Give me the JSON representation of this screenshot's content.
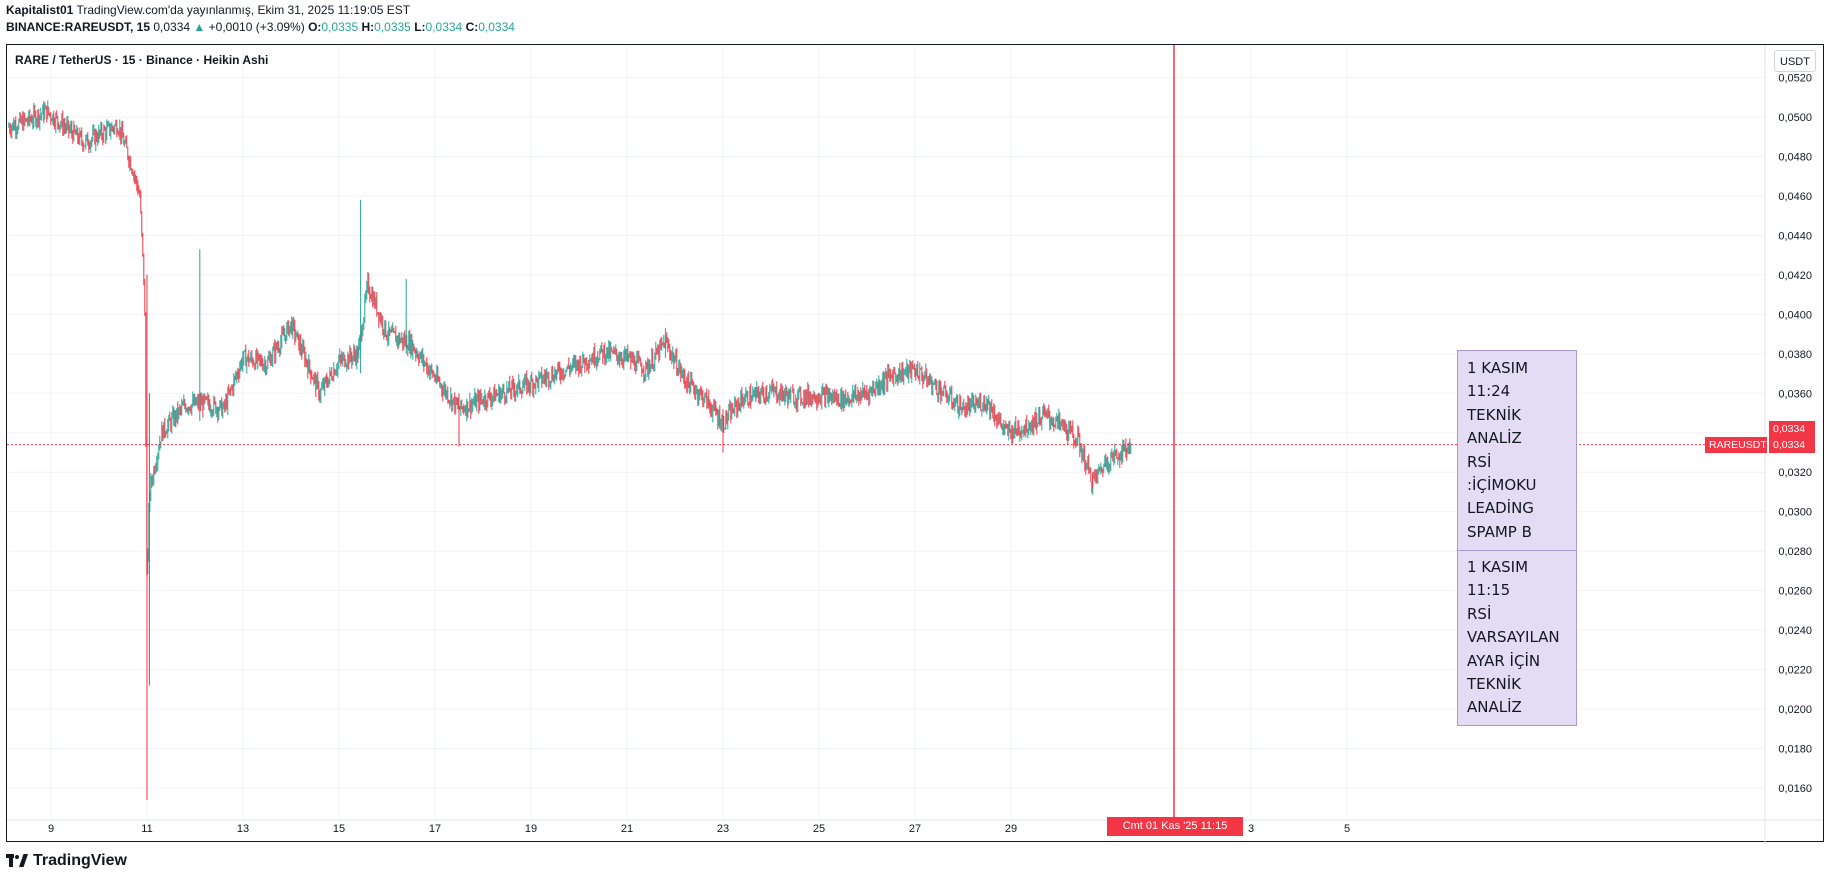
{
  "header": {
    "author": "Kapitalist01",
    "published": "TradingView.com'da yayınlanmış, Ekim 31, 2025 11:19:05 EST",
    "symbol": "BINANCE:RAREUSDT, 15",
    "last": "0,0334",
    "change": "+0,0010 (+3.09%)",
    "o_label": "O:",
    "o_value": "0,0335",
    "h_label": "H:",
    "h_value": "0,0335",
    "l_label": "L:",
    "l_value": "0,0334",
    "c_label": "C:",
    "c_value": "0,0334"
  },
  "chart_title": "RARE / TetherUS · 15 · Binance · Heikin Ashi",
  "currency": "USDT",
  "price_tags": {
    "symbol_label": "RAREUSDT",
    "last_price": "0,0334",
    "close_price": "0,0334"
  },
  "time_tag": "Cmt 01 Kas '25    11:15",
  "note": {
    "part1": "1 KASIM\n11:24\nTEKNİK\nANALİZ\nRSİ\n:İÇİMOKU\nLEADİNG\nSPAMP B",
    "part2": "1 KASIM\n11:15\nRSİ\nVARSAYILAN\nAYAR İÇİN\nTEKNİK\nANALİZ"
  },
  "footer": {
    "brand": "TradingView"
  },
  "colors": {
    "up": "#26a69a",
    "down": "#f23645",
    "marker": "#f23645",
    "note_bg": "#e4dcf4"
  },
  "chart_data": {
    "type": "candlestick",
    "style": "Heikin Ashi",
    "title": "RARE / TetherUS · 15 · Binance · Heikin Ashi",
    "y_ticks": [
      "0,0520",
      "0,0500",
      "0,0480",
      "0,0460",
      "0,0440",
      "0,0420",
      "0,0400",
      "0,0380",
      "0,0360",
      "0,0340",
      "0,0320",
      "0,0300",
      "0,0280",
      "0,0260",
      "0,0240",
      "0,0220",
      "0,0200",
      "0,0180",
      "0,0160"
    ],
    "x_ticks": [
      "9",
      "11",
      "13",
      "15",
      "17",
      "19",
      "21",
      "23",
      "25",
      "27",
      "29",
      "3",
      "5"
    ],
    "ylim": [
      0.0153,
      0.0522
    ],
    "last_price": 0.0334,
    "grid": true,
    "series": [
      {
        "name": "RAREUSDT",
        "points": [
          {
            "day": 8.1,
            "price": 0.0495
          },
          {
            "day": 8.5,
            "price": 0.0498
          },
          {
            "day": 8.9,
            "price": 0.0503
          },
          {
            "day": 9.3,
            "price": 0.0495
          },
          {
            "day": 9.7,
            "price": 0.0487
          },
          {
            "day": 10.0,
            "price": 0.0491
          },
          {
            "day": 10.4,
            "price": 0.0496
          },
          {
            "day": 10.7,
            "price": 0.0474
          },
          {
            "day": 10.85,
            "price": 0.046
          },
          {
            "day": 10.95,
            "price": 0.041
          },
          {
            "day": 11.0,
            "price": 0.026
          },
          {
            "day": 11.05,
            "price": 0.031
          },
          {
            "day": 11.3,
            "price": 0.034
          },
          {
            "day": 11.8,
            "price": 0.0354
          },
          {
            "day": 12.2,
            "price": 0.0355
          },
          {
            "day": 12.6,
            "price": 0.0352
          },
          {
            "day": 13.0,
            "price": 0.0378
          },
          {
            "day": 13.5,
            "price": 0.0375
          },
          {
            "day": 14.0,
            "price": 0.0395
          },
          {
            "day": 14.6,
            "price": 0.036
          },
          {
            "day": 15.0,
            "price": 0.0376
          },
          {
            "day": 15.4,
            "price": 0.038
          },
          {
            "day": 15.6,
            "price": 0.0415
          },
          {
            "day": 16.0,
            "price": 0.039
          },
          {
            "day": 16.5,
            "price": 0.0385
          },
          {
            "day": 17.0,
            "price": 0.0368
          },
          {
            "day": 17.5,
            "price": 0.0352
          },
          {
            "day": 18.0,
            "price": 0.0357
          },
          {
            "day": 18.5,
            "price": 0.0361
          },
          {
            "day": 19.0,
            "price": 0.0365
          },
          {
            "day": 19.5,
            "price": 0.037
          },
          {
            "day": 20.0,
            "price": 0.0375
          },
          {
            "day": 20.5,
            "price": 0.0381
          },
          {
            "day": 21.0,
            "price": 0.0378
          },
          {
            "day": 21.4,
            "price": 0.0372
          },
          {
            "day": 21.8,
            "price": 0.0386
          },
          {
            "day": 22.2,
            "price": 0.0367
          },
          {
            "day": 22.6,
            "price": 0.0358
          },
          {
            "day": 23.0,
            "price": 0.0345
          },
          {
            "day": 23.4,
            "price": 0.0357
          },
          {
            "day": 24.0,
            "price": 0.0361
          },
          {
            "day": 24.5,
            "price": 0.0358
          },
          {
            "day": 25.0,
            "price": 0.0359
          },
          {
            "day": 25.5,
            "price": 0.0357
          },
          {
            "day": 26.0,
            "price": 0.036
          },
          {
            "day": 26.5,
            "price": 0.0369
          },
          {
            "day": 27.0,
            "price": 0.0372
          },
          {
            "day": 27.5,
            "price": 0.0362
          },
          {
            "day": 28.0,
            "price": 0.0352
          },
          {
            "day": 28.5,
            "price": 0.0356
          },
          {
            "day": 28.9,
            "price": 0.034
          },
          {
            "day": 29.3,
            "price": 0.0343
          },
          {
            "day": 29.7,
            "price": 0.0349
          },
          {
            "day": 30.1,
            "price": 0.0343
          },
          {
            "day": 30.4,
            "price": 0.0336
          },
          {
            "day": 30.7,
            "price": 0.0315
          },
          {
            "day": 31.0,
            "price": 0.0326
          },
          {
            "day": 31.3,
            "price": 0.033
          },
          {
            "day": 31.5,
            "price": 0.0334
          }
        ]
      }
    ]
  }
}
